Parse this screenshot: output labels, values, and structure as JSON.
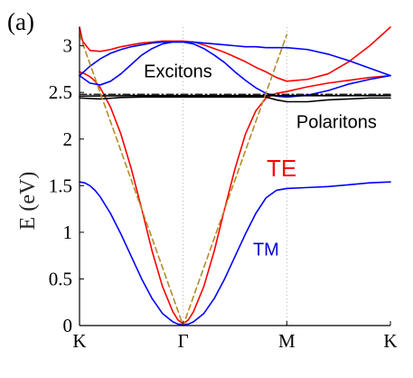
{
  "panel_label": "(a)",
  "chart_data": {
    "type": "line",
    "xlabel": "",
    "ylabel": "E (eV)",
    "xlim": [
      0,
      3
    ],
    "ylim": [
      0,
      3.2
    ],
    "grid": "vertical dotted lines at high-symmetry points",
    "x_ticks": [
      {
        "value": 0,
        "label": "K"
      },
      {
        "value": 1,
        "label": "Γ"
      },
      {
        "value": 2,
        "label": "M"
      },
      {
        "value": 3,
        "label": "K"
      }
    ],
    "y_ticks": [
      {
        "value": 0,
        "label": "0"
      },
      {
        "value": 0.5,
        "label": "0.5"
      },
      {
        "value": 1,
        "label": "1"
      },
      {
        "value": 1.5,
        "label": "1.5"
      },
      {
        "value": 2,
        "label": "2"
      },
      {
        "value": 2.5,
        "label": "2.5"
      },
      {
        "value": 3,
        "label": "3"
      }
    ],
    "annotations": [
      {
        "text": "Excitons",
        "x": 0.95,
        "y": 2.66,
        "color": "#000000",
        "size": "normal"
      },
      {
        "text": "Polaritons",
        "x": 2.48,
        "y": 2.12,
        "color": "#000000",
        "size": "normal"
      },
      {
        "text": "TE",
        "x": 1.95,
        "y": 1.6,
        "color": "#ff0000",
        "size": "big"
      },
      {
        "text": "TM",
        "x": 1.8,
        "y": 0.75,
        "color": "#0000cc",
        "size": "normal"
      }
    ],
    "series": [
      {
        "color": "#ff0000",
        "style": "solid",
        "x": [
          0,
          0.05,
          0.1,
          0.15,
          0.2,
          0.3,
          0.4,
          0.5,
          0.6,
          0.7,
          0.8,
          0.9,
          0.95,
          1.0,
          1.05,
          1.1,
          1.2,
          1.3,
          1.4,
          1.5,
          1.6,
          1.7,
          1.8,
          1.9,
          1.95,
          2.0
        ],
        "y": [
          2.72,
          2.7,
          2.67,
          2.62,
          2.55,
          2.34,
          2.05,
          1.68,
          1.25,
          0.8,
          0.42,
          0.15,
          0.06,
          0.02,
          0.06,
          0.15,
          0.42,
          0.8,
          1.25,
          1.68,
          2.05,
          2.3,
          2.44,
          2.49,
          2.5,
          2.51
        ]
      },
      {
        "color": "#ff0000",
        "style": "solid",
        "x": [
          2.0,
          2.2,
          2.4,
          2.6,
          2.8,
          3.0
        ],
        "y": [
          2.51,
          2.56,
          2.6,
          2.63,
          2.66,
          2.68
        ]
      },
      {
        "color": "#ff0000",
        "style": "solid",
        "x": [
          2.0,
          2.2,
          2.4,
          2.6,
          2.8,
          3.0
        ],
        "y": [
          2.62,
          2.64,
          2.7,
          2.83,
          3.0,
          3.2
        ]
      },
      {
        "color": "#ff0000",
        "style": "solid",
        "x": [
          0,
          0.03,
          0.1,
          0.2,
          0.3,
          0.4,
          0.5,
          0.6,
          0.7,
          0.8,
          0.9,
          1.0,
          1.1,
          1.2,
          1.3,
          1.4,
          1.5,
          1.6,
          1.7,
          1.8,
          1.9,
          2.0
        ],
        "y": [
          3.2,
          3.05,
          2.95,
          2.94,
          2.96,
          2.99,
          3.01,
          3.03,
          3.04,
          3.05,
          3.05,
          3.05,
          3.04,
          3.01,
          2.97,
          2.93,
          2.88,
          2.83,
          2.77,
          2.72,
          2.66,
          2.62
        ]
      },
      {
        "color": "#0000ff",
        "style": "solid",
        "x": [
          0,
          0.05,
          0.1,
          0.15,
          0.2,
          0.3,
          0.4,
          0.5,
          0.6,
          0.7,
          0.8,
          0.9,
          0.95,
          1.0,
          1.05,
          1.1,
          1.2,
          1.3,
          1.4,
          1.5,
          1.6,
          1.7,
          1.8,
          1.9,
          2.0,
          2.2,
          2.4,
          2.6,
          2.8,
          3.0
        ],
        "y": [
          1.54,
          1.53,
          1.5,
          1.45,
          1.38,
          1.2,
          0.98,
          0.74,
          0.5,
          0.29,
          0.13,
          0.04,
          0.015,
          0.01,
          0.015,
          0.04,
          0.13,
          0.29,
          0.5,
          0.74,
          0.98,
          1.2,
          1.37,
          1.45,
          1.47,
          1.48,
          1.49,
          1.51,
          1.53,
          1.54
        ]
      },
      {
        "color": "#0000ff",
        "style": "solid",
        "x": [
          0,
          0.1,
          0.2,
          0.3,
          0.4,
          0.5,
          0.6,
          0.7,
          0.8,
          0.9,
          1.0,
          1.1,
          1.2,
          1.3,
          1.4,
          1.5,
          1.6,
          1.7,
          1.8,
          1.9,
          2.0,
          2.2,
          2.4,
          2.6,
          2.8,
          3.0
        ],
        "y": [
          2.68,
          2.78,
          2.86,
          2.92,
          2.96,
          2.99,
          3.01,
          3.03,
          3.04,
          3.04,
          3.04,
          3.04,
          3.03,
          3.02,
          3.01,
          3.0,
          2.99,
          2.99,
          2.98,
          2.98,
          2.98,
          2.96,
          2.91,
          2.84,
          2.76,
          2.68
        ]
      },
      {
        "color": "#0000ff",
        "style": "solid",
        "x": [
          0,
          0.1,
          0.2,
          0.3,
          0.4,
          0.5,
          0.6,
          0.7,
          0.8,
          0.9,
          1.0,
          1.1,
          1.2,
          1.3,
          1.4,
          1.5,
          1.6,
          1.7,
          1.8,
          1.9,
          2.0,
          2.2,
          2.4,
          2.6,
          2.8,
          3.0
        ],
        "y": [
          2.68,
          2.6,
          2.58,
          2.62,
          2.7,
          2.8,
          2.9,
          2.97,
          3.02,
          3.04,
          3.04,
          3.02,
          2.97,
          2.9,
          2.82,
          2.72,
          2.63,
          2.55,
          2.49,
          2.46,
          2.45,
          2.47,
          2.52,
          2.59,
          2.64,
          2.68
        ]
      },
      {
        "color": "#000000",
        "style": "solid",
        "x": [
          0,
          0.2,
          0.4,
          0.6,
          0.8,
          1.0,
          1.2,
          1.4,
          1.6,
          1.8,
          1.9,
          2.0,
          2.2,
          2.4,
          2.6,
          2.8,
          3.0
        ],
        "y": [
          2.44,
          2.43,
          2.445,
          2.45,
          2.45,
          2.45,
          2.45,
          2.45,
          2.45,
          2.45,
          2.42,
          2.4,
          2.4,
          2.42,
          2.43,
          2.44,
          2.44
        ]
      },
      {
        "color": "#000000",
        "style": "solid",
        "x": [
          0,
          0.5,
          1.0,
          1.5,
          2.0,
          2.5,
          3.0
        ],
        "y": [
          2.46,
          2.465,
          2.465,
          2.465,
          2.465,
          2.465,
          2.465
        ]
      },
      {
        "color": "#000000",
        "style": "dashdot",
        "x": [
          0,
          3.0
        ],
        "y": [
          2.48,
          2.48
        ]
      },
      {
        "color": "#b08c2a",
        "style": "dashed",
        "x": [
          0,
          1.0,
          2.0
        ],
        "y": [
          3.12,
          0.0,
          3.12
        ]
      }
    ]
  }
}
